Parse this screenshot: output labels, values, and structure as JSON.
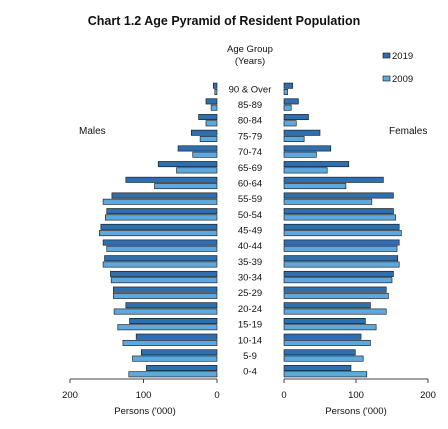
{
  "chart_data": {
    "type": "bar",
    "orientation": "population-pyramid",
    "title": "Chart 1.2  Age Pyramid of Resident Population",
    "category_axis_title_line1": "Age Group",
    "category_axis_title_line2": "(Years)",
    "left_label": "Males",
    "right_label": "Females",
    "left_xlabel": "Persons ('000)",
    "right_xlabel": "Persons ('000)",
    "xlim": [
      0,
      200
    ],
    "xticks": [
      "200",
      "100",
      "0",
      "0",
      "100",
      "200"
    ],
    "legend_position": "top-right",
    "categories": [
      "0-4",
      "5-9",
      "10-14",
      "15-19",
      "20-24",
      "25-29",
      "30-34",
      "35-39",
      "40-44",
      "45-49",
      "50-54",
      "55-59",
      "60-64",
      "65-69",
      "70-74",
      "75-79",
      "80-84",
      "85-89",
      "90 & Over"
    ],
    "series": [
      {
        "name": "2019",
        "color": "#2e6fb0",
        "males": [
          96,
          103,
          110,
          119,
          124,
          141,
          145,
          153,
          155,
          158,
          150,
          143,
          124,
          80,
          53,
          35,
          25,
          15,
          5
        ],
        "females": [
          93,
          99,
          107,
          113,
          120,
          142,
          152,
          158,
          160,
          160,
          152,
          152,
          138,
          90,
          65,
          50,
          34,
          20,
          12
        ]
      },
      {
        "name": "2009",
        "color": "#5fa8dd",
        "males": [
          120,
          115,
          128,
          135,
          140,
          141,
          144,
          155,
          150,
          160,
          152,
          155,
          85,
          55,
          33,
          23,
          15,
          8,
          3
        ],
        "females": [
          115,
          110,
          120,
          128,
          142,
          145,
          150,
          160,
          157,
          163,
          155,
          122,
          86,
          60,
          45,
          28,
          17,
          10,
          5
        ]
      }
    ]
  }
}
